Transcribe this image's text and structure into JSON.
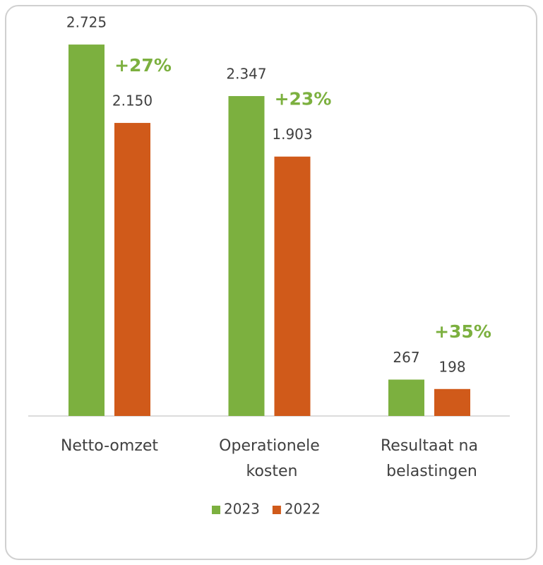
{
  "chart_data": {
    "type": "bar",
    "categories": [
      "Netto-omzet",
      "Operationele kosten",
      "Resultaat na belastingen"
    ],
    "series": [
      {
        "name": "2023",
        "color": "#7cb03f",
        "values": [
          2725,
          2347,
          267
        ],
        "value_labels": [
          "2.725",
          "2.347",
          "267"
        ]
      },
      {
        "name": "2022",
        "color": "#d05a1a",
        "values": [
          2150,
          1903,
          198
        ],
        "value_labels": [
          "2.150",
          "1.903",
          "198"
        ]
      }
    ],
    "annotations": [
      "+27%",
      "+23%",
      "+35%"
    ],
    "annotation_color": "#7cb03f",
    "ylim": [
      0,
      3000
    ],
    "legend": "bottom"
  }
}
